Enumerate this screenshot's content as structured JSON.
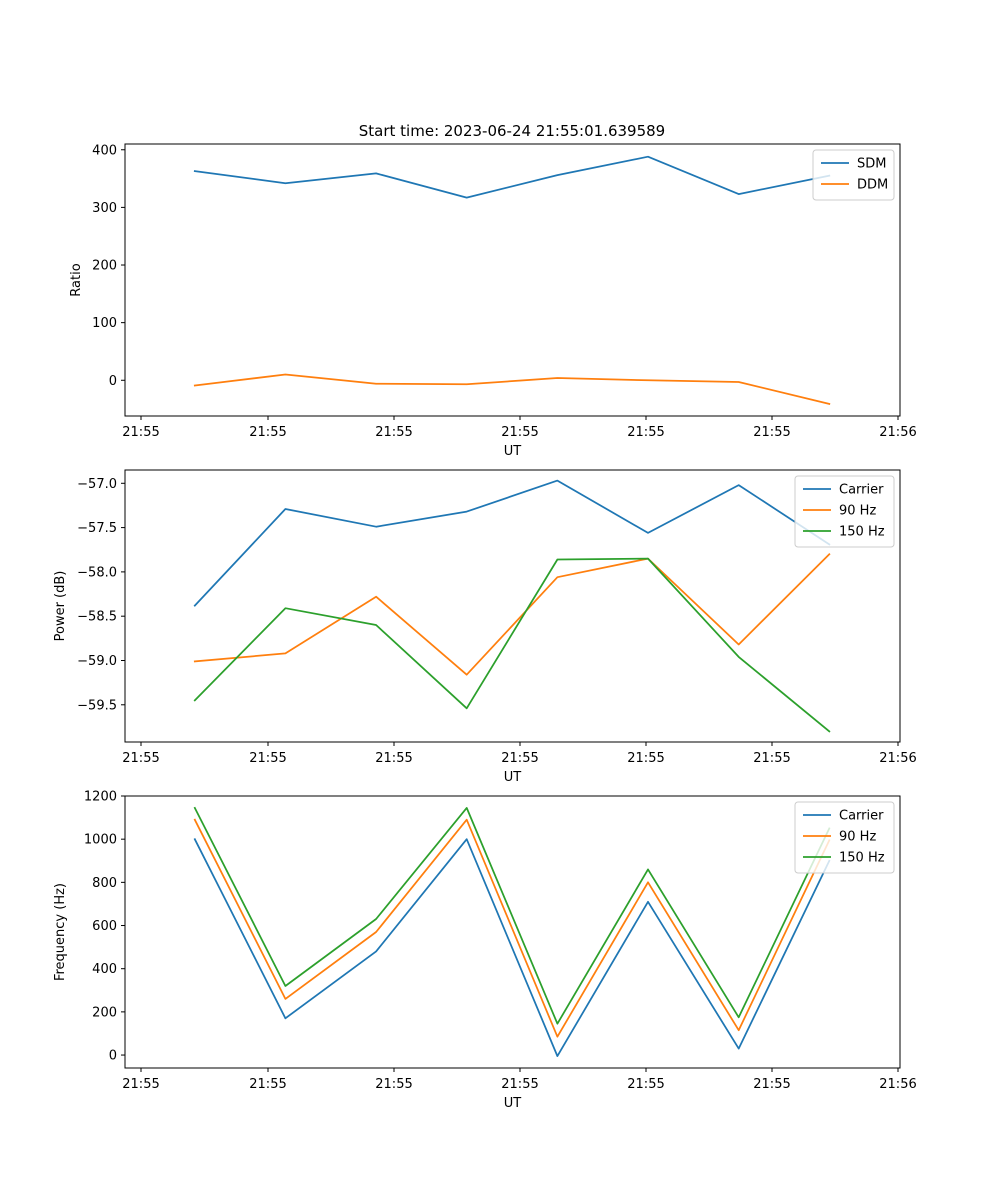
{
  "figure": {
    "title": "Start time: 2023-06-24 21:55:01.639589"
  },
  "colors": {
    "blue": "#1f77b4",
    "orange": "#ff7f0e",
    "green": "#2ca02c"
  },
  "chart_data": [
    {
      "type": "line",
      "title": "Start time: 2023-06-24 21:55:01.639589",
      "xlabel": "UT",
      "ylabel": "Ratio",
      "x": [
        1,
        2,
        3,
        4,
        5,
        6,
        7,
        8
      ],
      "x_tick_labels": [
        "21:55",
        "21:55",
        "21:55",
        "21:55",
        "21:55",
        "21:55",
        "21:55",
        "21:56"
      ],
      "yticks": [
        0,
        100,
        200,
        300,
        400
      ],
      "ytick_labels": [
        "0",
        "100",
        "200",
        "300",
        "400"
      ],
      "ylim": [
        -62,
        410
      ],
      "legend": "top-right",
      "grid": false,
      "series": [
        {
          "name": "SDM",
          "color": "#1f77b4",
          "values": [
            363,
            342,
            359,
            317,
            356,
            388,
            323,
            355
          ]
        },
        {
          "name": "DDM",
          "color": "#ff7f0e",
          "values": [
            -9,
            10,
            -6,
            -7,
            4,
            0,
            -3,
            -41
          ]
        }
      ]
    },
    {
      "type": "line",
      "xlabel": "UT",
      "ylabel": "Power (dB)",
      "x": [
        1,
        2,
        3,
        4,
        5,
        6,
        7,
        8
      ],
      "x_tick_labels": [
        "21:55",
        "21:55",
        "21:55",
        "21:55",
        "21:55",
        "21:55",
        "21:55",
        "21:56"
      ],
      "yticks": [
        -59.5,
        -59.0,
        -58.5,
        -58.0,
        -57.5,
        -57.0
      ],
      "ytick_labels": [
        "−59.5",
        "−59.0",
        "−58.5",
        "−58.0",
        "−57.5",
        "−57.0"
      ],
      "ylim": [
        -59.92,
        -56.85
      ],
      "legend": "top-right",
      "grid": false,
      "series": [
        {
          "name": "Carrier",
          "color": "#1f77b4",
          "values": [
            -58.38,
            -57.29,
            -57.49,
            -57.32,
            -56.97,
            -57.56,
            -57.02,
            -57.69
          ]
        },
        {
          "name": "90 Hz",
          "color": "#ff7f0e",
          "values": [
            -59.01,
            -58.92,
            -58.28,
            -59.16,
            -58.06,
            -57.85,
            -58.82,
            -57.8
          ]
        },
        {
          "name": "150 Hz",
          "color": "#2ca02c",
          "values": [
            -59.45,
            -58.41,
            -58.6,
            -59.54,
            -57.86,
            -57.85,
            -58.96,
            -59.8
          ]
        }
      ]
    },
    {
      "type": "line",
      "xlabel": "UT",
      "ylabel": "Frequency (Hz)",
      "x": [
        1,
        2,
        3,
        4,
        5,
        6,
        7,
        8
      ],
      "x_tick_labels": [
        "21:55",
        "21:55",
        "21:55",
        "21:55",
        "21:55",
        "21:55",
        "21:55",
        "21:56"
      ],
      "yticks": [
        0,
        200,
        400,
        600,
        800,
        1000,
        1200
      ],
      "ytick_labels": [
        "0",
        "200",
        "400",
        "600",
        "800",
        "1000",
        "1200"
      ],
      "ylim": [
        -60,
        1200
      ],
      "legend": "top-right",
      "grid": false,
      "series": [
        {
          "name": "Carrier",
          "color": "#1f77b4",
          "values": [
            1000,
            170,
            480,
            1000,
            -5,
            710,
            30,
            900
          ]
        },
        {
          "name": "90 Hz",
          "color": "#ff7f0e",
          "values": [
            1090,
            260,
            570,
            1090,
            85,
            800,
            115,
            995
          ]
        },
        {
          "name": "150 Hz",
          "color": "#2ca02c",
          "values": [
            1145,
            320,
            630,
            1145,
            145,
            860,
            175,
            1050
          ]
        }
      ]
    }
  ]
}
